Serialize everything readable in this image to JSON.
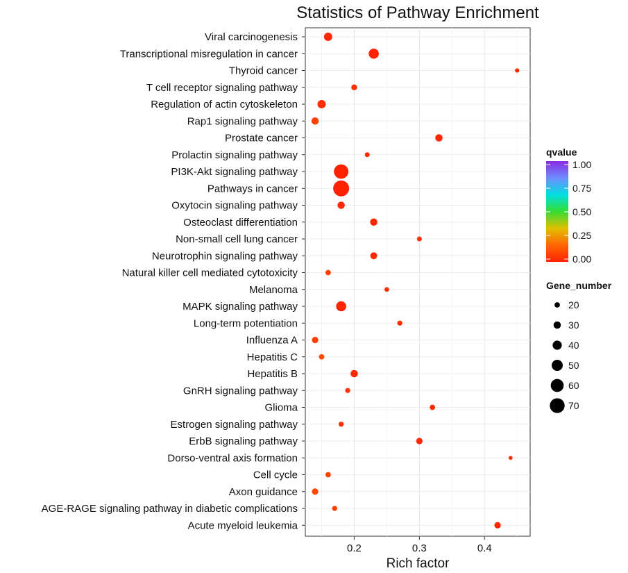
{
  "chart_data": {
    "type": "scatter",
    "title": "Statistics of Pathway Enrichment",
    "xlabel": "Rich factor",
    "ylabel": "",
    "xlim": [
      0.125,
      0.47
    ],
    "xticks": [
      "0.2",
      "0.3",
      "0.4"
    ],
    "xtick_values": [
      0.2,
      0.3,
      0.4
    ],
    "grid": true,
    "legend_position": "right",
    "color_legend": {
      "title": "qvalue",
      "ticks": [
        "1.00",
        "0.75",
        "0.50",
        "0.25",
        "0.00"
      ],
      "tick_values": [
        1.0,
        0.75,
        0.5,
        0.25,
        0.0
      ],
      "colors": [
        "#8a2be2",
        "#6f8cff",
        "#00e0e0",
        "#33dd33",
        "#e0c000",
        "#ff6600",
        "#ff2200"
      ]
    },
    "size_legend": {
      "title": "Gene_number",
      "ticks": [
        "20",
        "30",
        "40",
        "50",
        "60",
        "70"
      ],
      "values": [
        20,
        30,
        40,
        50,
        60,
        70
      ]
    },
    "points": [
      {
        "pathway": "Viral carcinogenesis",
        "rich_factor": 0.16,
        "gene_number": 35,
        "qvalue": 0.01
      },
      {
        "pathway": "Transcriptional misregulation in cancer",
        "rich_factor": 0.23,
        "gene_number": 45,
        "qvalue": 0.005
      },
      {
        "pathway": "Thyroid cancer",
        "rich_factor": 0.45,
        "gene_number": 14,
        "qvalue": 0.02
      },
      {
        "pathway": "T cell receptor signaling pathway",
        "rich_factor": 0.2,
        "gene_number": 22,
        "qvalue": 0.03
      },
      {
        "pathway": "Regulation of actin cytoskeleton",
        "rich_factor": 0.15,
        "gene_number": 35,
        "qvalue": 0.03
      },
      {
        "pathway": "Rap1 signaling pathway",
        "rich_factor": 0.14,
        "gene_number": 30,
        "qvalue": 0.08
      },
      {
        "pathway": "Prostate cancer",
        "rich_factor": 0.33,
        "gene_number": 30,
        "qvalue": 0.01
      },
      {
        "pathway": "Prolactin signaling pathway",
        "rich_factor": 0.22,
        "gene_number": 17,
        "qvalue": 0.03
      },
      {
        "pathway": "PI3K-Akt signaling pathway",
        "rich_factor": 0.18,
        "gene_number": 68,
        "qvalue": 0.001
      },
      {
        "pathway": "Pathways in cancer",
        "rich_factor": 0.18,
        "gene_number": 76,
        "qvalue": 0.0005
      },
      {
        "pathway": "Oxytocin signaling pathway",
        "rich_factor": 0.18,
        "gene_number": 30,
        "qvalue": 0.02
      },
      {
        "pathway": "Osteoclast differentiation",
        "rich_factor": 0.23,
        "gene_number": 30,
        "qvalue": 0.01
      },
      {
        "pathway": "Non-small cell lung cancer",
        "rich_factor": 0.3,
        "gene_number": 17,
        "qvalue": 0.03
      },
      {
        "pathway": "Neurotrophin signaling pathway",
        "rich_factor": 0.23,
        "gene_number": 28,
        "qvalue": 0.02
      },
      {
        "pathway": "Natural killer cell mediated cytotoxicity",
        "rich_factor": 0.16,
        "gene_number": 20,
        "qvalue": 0.07
      },
      {
        "pathway": "Melanoma",
        "rich_factor": 0.25,
        "gene_number": 16,
        "qvalue": 0.03
      },
      {
        "pathway": "MAPK signaling pathway",
        "rich_factor": 0.18,
        "gene_number": 45,
        "qvalue": 0.01
      },
      {
        "pathway": "Long-term potentiation",
        "rich_factor": 0.27,
        "gene_number": 18,
        "qvalue": 0.03
      },
      {
        "pathway": "Influenza A",
        "rich_factor": 0.14,
        "gene_number": 25,
        "qvalue": 0.07
      },
      {
        "pathway": "Hepatitis C",
        "rich_factor": 0.15,
        "gene_number": 20,
        "qvalue": 0.1
      },
      {
        "pathway": "Hepatitis B",
        "rich_factor": 0.2,
        "gene_number": 30,
        "qvalue": 0.01
      },
      {
        "pathway": "GnRH signaling pathway",
        "rich_factor": 0.19,
        "gene_number": 18,
        "qvalue": 0.05
      },
      {
        "pathway": "Glioma",
        "rich_factor": 0.32,
        "gene_number": 20,
        "qvalue": 0.02
      },
      {
        "pathway": "Estrogen signaling pathway",
        "rich_factor": 0.18,
        "gene_number": 18,
        "qvalue": 0.04
      },
      {
        "pathway": "ErbB signaling pathway",
        "rich_factor": 0.3,
        "gene_number": 25,
        "qvalue": 0.01
      },
      {
        "pathway": "Dorso-ventral axis formation",
        "rich_factor": 0.44,
        "gene_number": 12,
        "qvalue": 0.03
      },
      {
        "pathway": "Cell cycle",
        "rich_factor": 0.16,
        "gene_number": 20,
        "qvalue": 0.08
      },
      {
        "pathway": "Axon guidance",
        "rich_factor": 0.14,
        "gene_number": 25,
        "qvalue": 0.09
      },
      {
        "pathway": "AGE-RAGE signaling pathway in diabetic complications",
        "rich_factor": 0.17,
        "gene_number": 18,
        "qvalue": 0.07
      },
      {
        "pathway": "Acute myeloid leukemia",
        "rich_factor": 0.42,
        "gene_number": 25,
        "qvalue": 0.01
      }
    ]
  }
}
